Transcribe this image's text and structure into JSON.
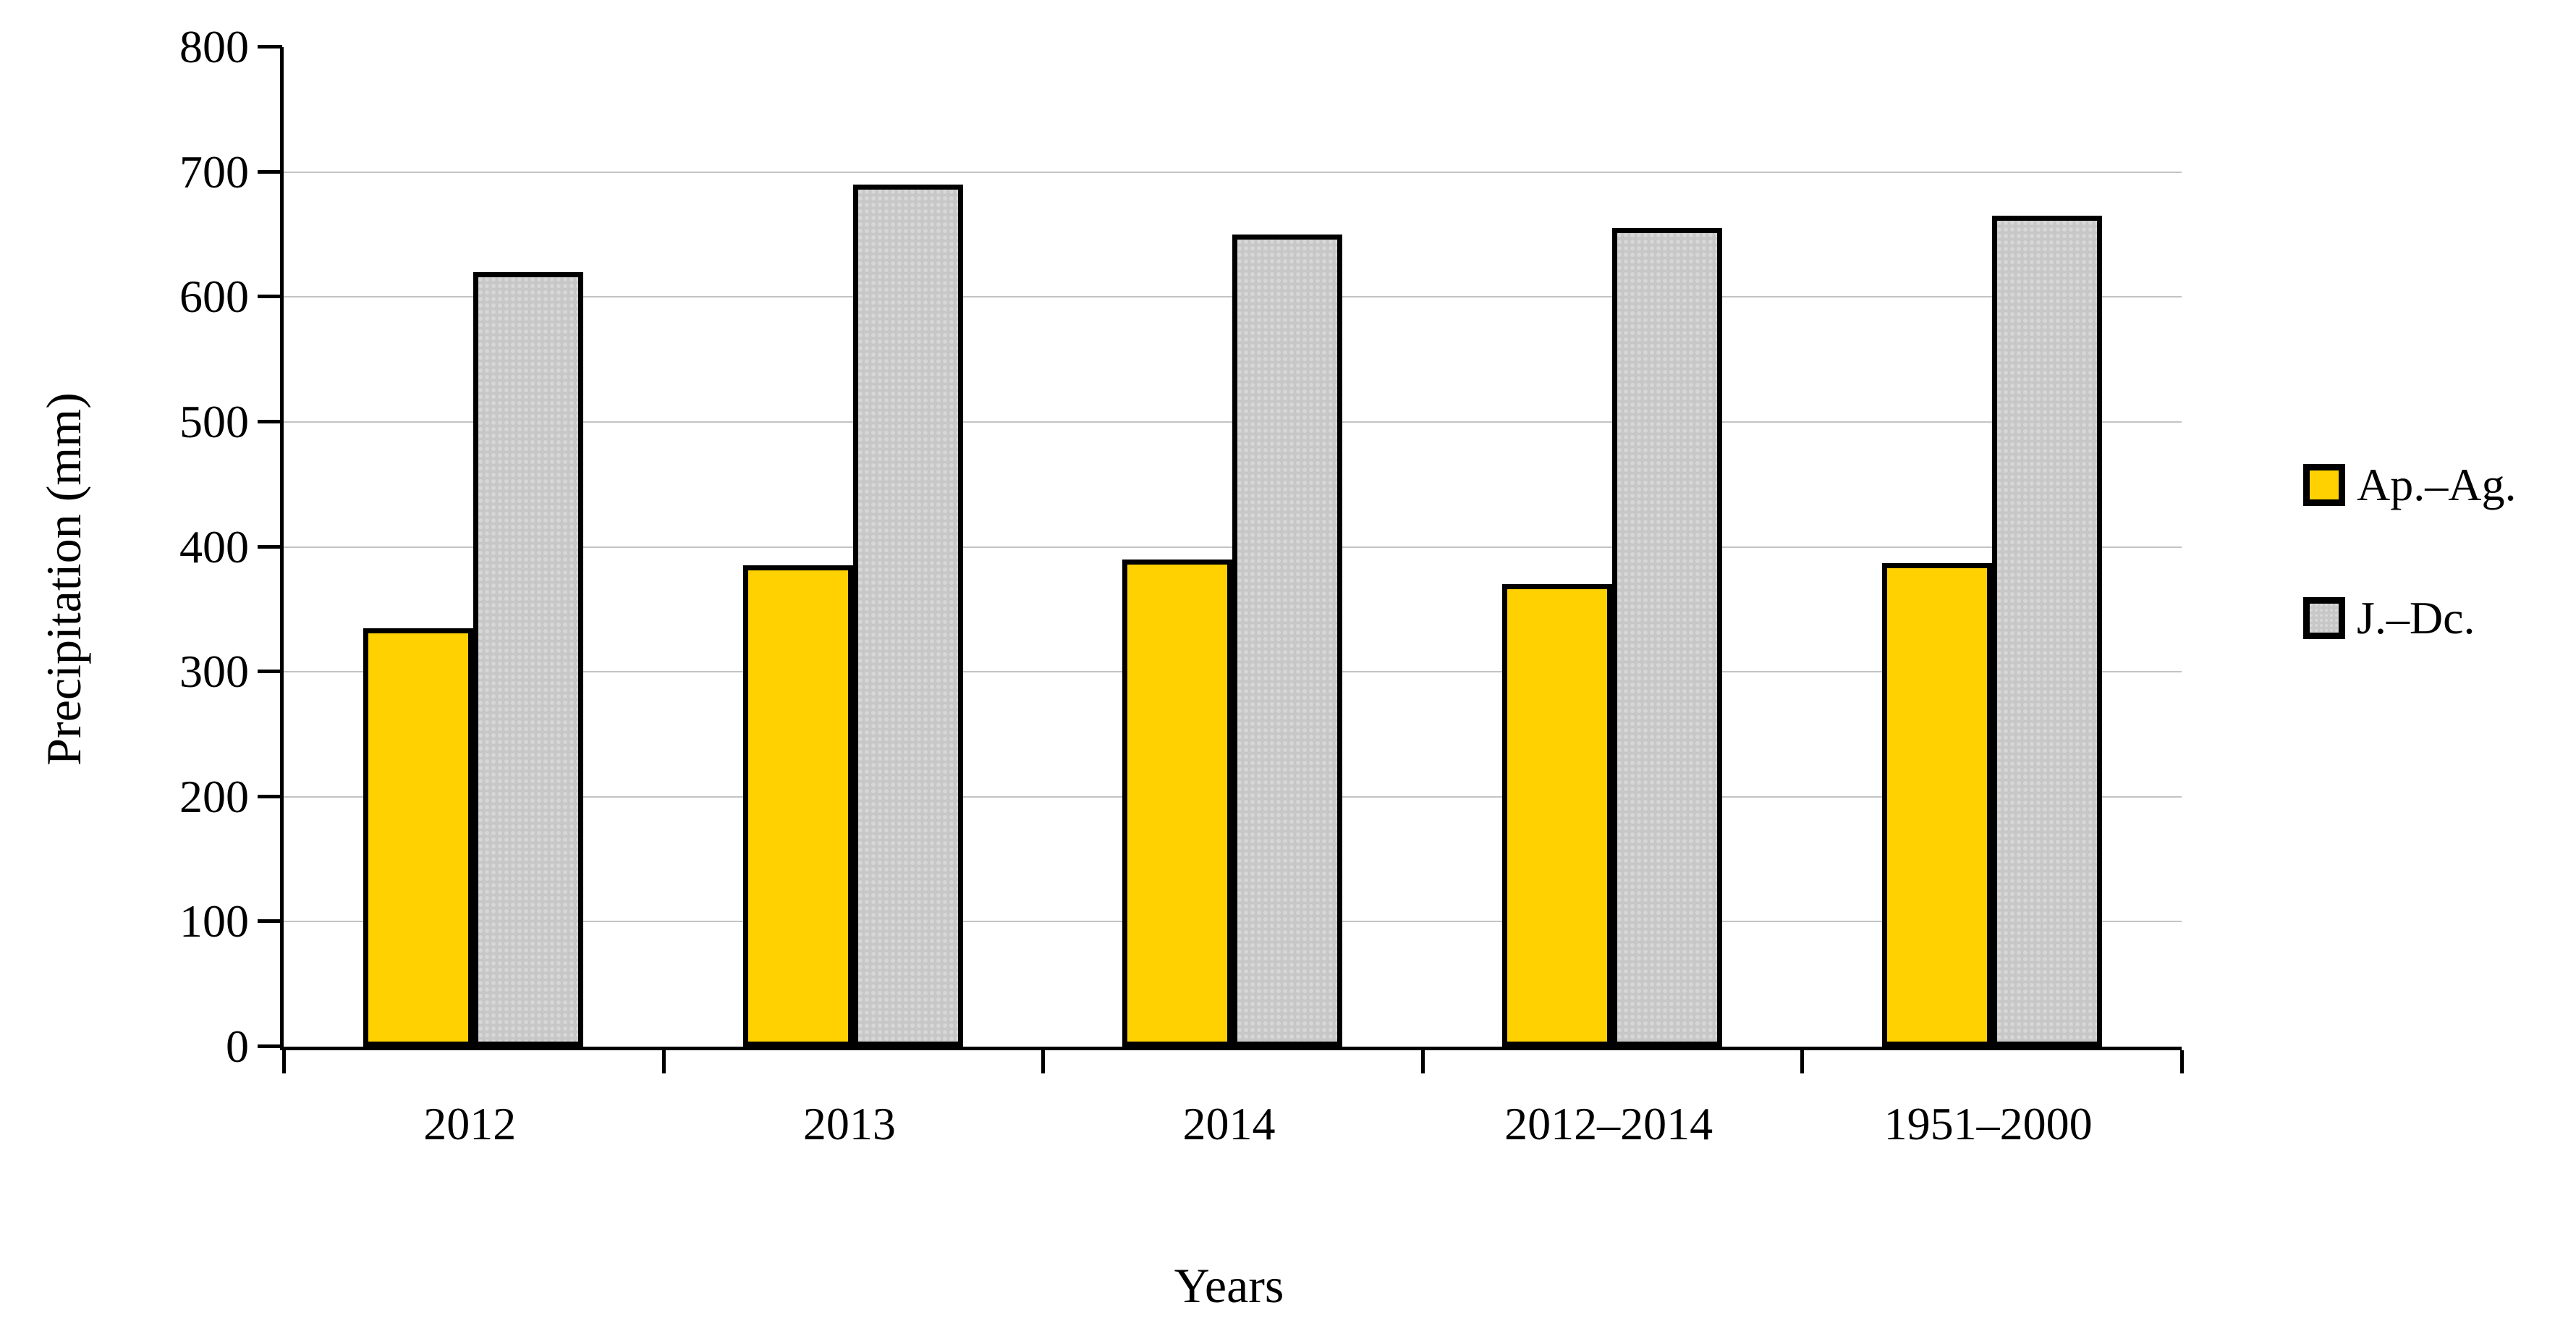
{
  "figure": {
    "background": "#ffffff",
    "axis_color": "#000000",
    "gridline_color": "#c3c3c3"
  },
  "chart_data": {
    "type": "bar",
    "title": "",
    "xlabel": "Years",
    "ylabel": "Precipitation (mm)",
    "ylim": [
      0,
      800
    ],
    "ytick_step": 100,
    "grid": true,
    "legend_position": "right",
    "categories": [
      "2012",
      "2013",
      "2014",
      "2012–2014",
      "1951–2000"
    ],
    "series": [
      {
        "name": "Ap.–Ag.",
        "color": "#FFD100",
        "texture": "solid",
        "values": [
          335,
          385,
          390,
          370,
          387
        ]
      },
      {
        "name": "J.–Dc.",
        "color": "#c7c7c7",
        "texture": "dots",
        "values": [
          620,
          690,
          650,
          655,
          665
        ]
      }
    ],
    "bar_border_color": "#000000"
  }
}
